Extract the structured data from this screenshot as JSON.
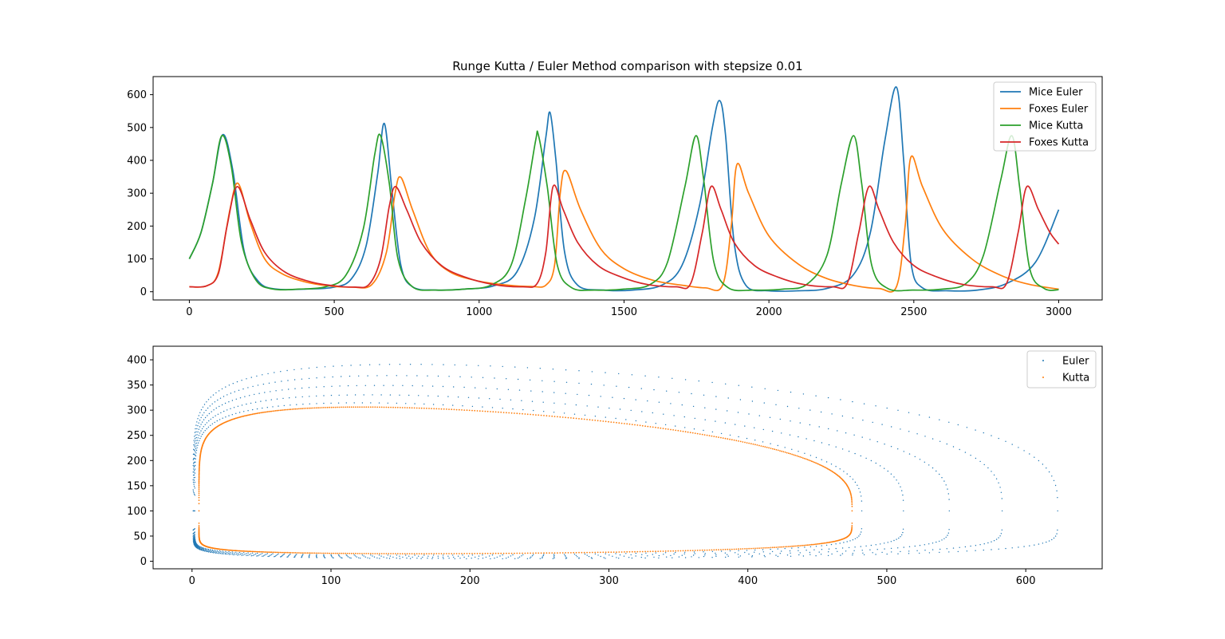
{
  "chart_data": [
    {
      "type": "line",
      "title": "Runge Kutta / Euler Method comparison with stepsize 0.01",
      "xlabel": "",
      "ylabel": "",
      "xlim": [
        -125,
        3150
      ],
      "ylim": [
        -25,
        655
      ],
      "xticks": [
        0,
        500,
        1000,
        1500,
        2000,
        2500,
        3000
      ],
      "yticks": [
        0,
        100,
        200,
        300,
        400,
        500,
        600
      ],
      "legend_position": "top-right",
      "grid": false,
      "series": [
        {
          "name": "Mice Euler",
          "color": "#1f77b4",
          "points": [
            [
              0,
              100
            ],
            [
              40,
              180
            ],
            [
              80,
              330
            ],
            [
              115,
              478
            ],
            [
              150,
              370
            ],
            [
              190,
              120
            ],
            [
              240,
              30
            ],
            [
              300,
              8
            ],
            [
              400,
              8
            ],
            [
              500,
              14
            ],
            [
              560,
              40
            ],
            [
              610,
              140
            ],
            [
              650,
              360
            ],
            [
              673,
              512
            ],
            [
              700,
              300
            ],
            [
              730,
              80
            ],
            [
              770,
              15
            ],
            [
              850,
              5
            ],
            [
              950,
              8
            ],
            [
              1050,
              18
            ],
            [
              1130,
              60
            ],
            [
              1190,
              220
            ],
            [
              1230,
              470
            ],
            [
              1245,
              545
            ],
            [
              1265,
              400
            ],
            [
              1295,
              120
            ],
            [
              1340,
              20
            ],
            [
              1430,
              5
            ],
            [
              1530,
              5
            ],
            [
              1630,
              20
            ],
            [
              1700,
              80
            ],
            [
              1760,
              260
            ],
            [
              1805,
              500
            ],
            [
              1830,
              582
            ],
            [
              1850,
              480
            ],
            [
              1880,
              150
            ],
            [
              1920,
              20
            ],
            [
              2000,
              3
            ],
            [
              2100,
              3
            ],
            [
              2200,
              10
            ],
            [
              2290,
              50
            ],
            [
              2350,
              180
            ],
            [
              2400,
              460
            ],
            [
              2440,
              623
            ],
            [
              2465,
              400
            ],
            [
              2490,
              90
            ],
            [
              2530,
              12
            ],
            [
              2620,
              3
            ],
            [
              2720,
              5
            ],
            [
              2820,
              25
            ],
            [
              2920,
              90
            ],
            [
              3000,
              250
            ]
          ]
        },
        {
          "name": "Foxes Euler",
          "color": "#ff7f0e",
          "points": [
            [
              0,
              15
            ],
            [
              60,
              18
            ],
            [
              100,
              60
            ],
            [
              140,
              250
            ],
            [
              168,
              330
            ],
            [
              210,
              210
            ],
            [
              260,
              100
            ],
            [
              320,
              55
            ],
            [
              400,
              30
            ],
            [
              480,
              18
            ],
            [
              560,
              14
            ],
            [
              630,
              22
            ],
            [
              680,
              120
            ],
            [
              710,
              300
            ],
            [
              730,
              348
            ],
            [
              770,
              250
            ],
            [
              830,
              120
            ],
            [
              900,
              60
            ],
            [
              1000,
              32
            ],
            [
              1100,
              20
            ],
            [
              1180,
              16
            ],
            [
              1230,
              20
            ],
            [
              1260,
              80
            ],
            [
              1280,
              300
            ],
            [
              1300,
              368
            ],
            [
              1350,
              250
            ],
            [
              1420,
              130
            ],
            [
              1500,
              70
            ],
            [
              1600,
              35
            ],
            [
              1700,
              20
            ],
            [
              1780,
              12
            ],
            [
              1840,
              20
            ],
            [
              1870,
              200
            ],
            [
              1890,
              388
            ],
            [
              1930,
              300
            ],
            [
              2000,
              170
            ],
            [
              2100,
              85
            ],
            [
              2200,
              40
            ],
            [
              2300,
              18
            ],
            [
              2380,
              10
            ],
            [
              2440,
              15
            ],
            [
              2470,
              200
            ],
            [
              2490,
              410
            ],
            [
              2530,
              320
            ],
            [
              2600,
              190
            ],
            [
              2700,
              100
            ],
            [
              2800,
              50
            ],
            [
              2900,
              22
            ],
            [
              3000,
              8
            ]
          ]
        },
        {
          "name": "Mice Kutta",
          "color": "#2ca02c",
          "points": [
            [
              0,
              100
            ],
            [
              40,
              180
            ],
            [
              80,
              330
            ],
            [
              112,
              475
            ],
            [
              145,
              380
            ],
            [
              180,
              150
            ],
            [
              230,
              35
            ],
            [
              290,
              8
            ],
            [
              380,
              8
            ],
            [
              470,
              15
            ],
            [
              540,
              50
            ],
            [
              600,
              190
            ],
            [
              640,
              420
            ],
            [
              660,
              475
            ],
            [
              690,
              330
            ],
            [
              720,
              100
            ],
            [
              770,
              15
            ],
            [
              850,
              5
            ],
            [
              950,
              8
            ],
            [
              1040,
              20
            ],
            [
              1110,
              80
            ],
            [
              1160,
              280
            ],
            [
              1195,
              460
            ],
            [
              1205,
              475
            ],
            [
              1235,
              320
            ],
            [
              1270,
              80
            ],
            [
              1320,
              12
            ],
            [
              1400,
              5
            ],
            [
              1500,
              8
            ],
            [
              1590,
              22
            ],
            [
              1650,
              90
            ],
            [
              1710,
              320
            ],
            [
              1748,
              475
            ],
            [
              1775,
              340
            ],
            [
              1810,
              90
            ],
            [
              1860,
              12
            ],
            [
              1950,
              5
            ],
            [
              2050,
              8
            ],
            [
              2130,
              22
            ],
            [
              2200,
              110
            ],
            [
              2250,
              330
            ],
            [
              2292,
              475
            ],
            [
              2320,
              330
            ],
            [
              2355,
              80
            ],
            [
              2410,
              10
            ],
            [
              2500,
              5
            ],
            [
              2600,
              8
            ],
            [
              2680,
              25
            ],
            [
              2740,
              110
            ],
            [
              2800,
              340
            ],
            [
              2838,
              475
            ],
            [
              2865,
              320
            ],
            [
              2900,
              70
            ],
            [
              2950,
              10
            ],
            [
              3000,
              6
            ]
          ]
        },
        {
          "name": "Foxes Kutta",
          "color": "#d62728",
          "points": [
            [
              0,
              15
            ],
            [
              60,
              18
            ],
            [
              100,
              55
            ],
            [
              130,
              200
            ],
            [
              165,
              320
            ],
            [
              210,
              220
            ],
            [
              260,
              120
            ],
            [
              330,
              60
            ],
            [
              420,
              30
            ],
            [
              500,
              18
            ],
            [
              570,
              14
            ],
            [
              620,
              22
            ],
            [
              660,
              100
            ],
            [
              690,
              260
            ],
            [
              712,
              320
            ],
            [
              750,
              250
            ],
            [
              800,
              150
            ],
            [
              870,
              80
            ],
            [
              950,
              45
            ],
            [
              1050,
              22
            ],
            [
              1150,
              15
            ],
            [
              1200,
              25
            ],
            [
              1230,
              120
            ],
            [
              1255,
              320
            ],
            [
              1290,
              250
            ],
            [
              1340,
              150
            ],
            [
              1410,
              80
            ],
            [
              1490,
              45
            ],
            [
              1580,
              22
            ],
            [
              1680,
              15
            ],
            [
              1730,
              25
            ],
            [
              1770,
              180
            ],
            [
              1800,
              320
            ],
            [
              1835,
              250
            ],
            [
              1880,
              150
            ],
            [
              1950,
              80
            ],
            [
              2030,
              45
            ],
            [
              2120,
              22
            ],
            [
              2220,
              15
            ],
            [
              2270,
              25
            ],
            [
              2310,
              180
            ],
            [
              2345,
              320
            ],
            [
              2380,
              250
            ],
            [
              2430,
              150
            ],
            [
              2500,
              80
            ],
            [
              2580,
              45
            ],
            [
              2670,
              22
            ],
            [
              2770,
              15
            ],
            [
              2820,
              25
            ],
            [
              2860,
              180
            ],
            [
              2890,
              320
            ],
            [
              2930,
              250
            ],
            [
              2970,
              180
            ],
            [
              3000,
              145
            ]
          ]
        }
      ]
    },
    {
      "type": "scatter",
      "title": "",
      "xlabel": "",
      "ylabel": "",
      "xlim": [
        -28,
        655
      ],
      "ylim": [
        -15,
        427
      ],
      "xticks": [
        0,
        100,
        200,
        300,
        400,
        500,
        600
      ],
      "yticks": [
        0,
        50,
        100,
        150,
        200,
        250,
        300,
        350,
        400
      ],
      "legend_position": "top-right",
      "grid": false,
      "series": [
        {
          "name": "Euler",
          "color": "#1f77b4",
          "orbits": [
            {
              "xmin": 2,
              "xmax": 482,
              "ytop": 330,
              "ybot": 12
            },
            {
              "xmin": 1.6,
              "xmax": 512,
              "ytop": 347,
              "ybot": 10
            },
            {
              "xmin": 1.3,
              "xmax": 545,
              "ytop": 367,
              "ybot": 8
            },
            {
              "xmin": 1.0,
              "xmax": 583,
              "ytop": 388,
              "ybot": 6
            },
            {
              "xmin": 0.8,
              "xmax": 623,
              "ytop": 412,
              "ybot": 5
            }
          ]
        },
        {
          "name": "Kutta",
          "color": "#ff7f0e",
          "orbits": [
            {
              "xmin": 5,
              "xmax": 475,
              "ytop": 321,
              "ybot": 15
            }
          ]
        }
      ]
    }
  ]
}
